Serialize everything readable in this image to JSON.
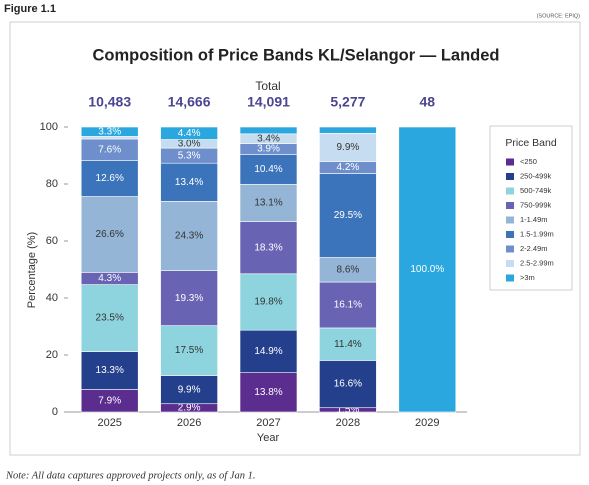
{
  "chart_data": {
    "type": "stacked_bar",
    "figure": "Figure 1.1",
    "source": "(SOURCE: EPIQ)",
    "title": "Composition of Price Bands KL/Selangor — Landed",
    "y_label": "Percentage (%)",
    "x_label": "Year",
    "legend_title": "Price Band",
    "note": "Note: All data captures approved projects only, as of Jan 1.",
    "categories": [
      "2025",
      "2026",
      "2027",
      "2028",
      "2029"
    ],
    "totals": {
      "label": "Total",
      "values": [
        10483,
        14666,
        14091,
        5277,
        48
      ],
      "value_labels": [
        "10,483",
        "14,666",
        "14,091",
        "5,277",
        "48"
      ]
    },
    "ylim": [
      0,
      100
    ],
    "yticks": [
      0,
      20,
      40,
      60,
      80,
      100
    ],
    "grid": false,
    "legend": "right",
    "series": [
      {
        "name": "<250",
        "color": "#5a2d8f",
        "values": [
          7.9,
          2.9,
          13.8,
          1.5,
          0
        ],
        "value_labels": [
          "7.9%",
          "2.9%",
          "13.8%",
          "1.5%",
          null
        ]
      },
      {
        "name": "250-499k",
        "color": "#24408d",
        "values": [
          13.3,
          9.9,
          14.9,
          16.6,
          0
        ],
        "value_labels": [
          "13.3%",
          "9.9%",
          "14.9%",
          "16.6%",
          null
        ]
      },
      {
        "name": "500-749k",
        "color": "#8ed4de",
        "values": [
          23.5,
          17.5,
          19.8,
          11.4,
          0
        ],
        "value_labels": [
          "23.5%",
          "17.5%",
          "19.8%",
          "11.4%",
          null
        ]
      },
      {
        "name": "750-999k",
        "color": "#6963b4",
        "values": [
          4.3,
          19.3,
          18.3,
          16.1,
          0
        ],
        "value_labels": [
          "4.3%",
          "19.3%",
          "18.3%",
          "16.1%",
          null
        ]
      },
      {
        "name": "1-1.49m",
        "color": "#94b5d6",
        "values": [
          26.6,
          24.3,
          13.1,
          8.6,
          0
        ],
        "value_labels": [
          "26.6%",
          "24.3%",
          "13.1%",
          "8.6%",
          null
        ]
      },
      {
        "name": "1.5-1.99m",
        "color": "#3b74ba",
        "values": [
          12.6,
          13.4,
          10.4,
          29.5,
          0
        ],
        "value_labels": [
          "12.6%",
          "13.4%",
          "10.4%",
          "29.5%",
          null
        ]
      },
      {
        "name": "2-2.49m",
        "color": "#6e8fcc",
        "values": [
          7.6,
          5.3,
          3.9,
          4.2,
          0
        ],
        "value_labels": [
          "7.6%",
          "5.3%",
          "3.9%",
          "4.2%",
          null
        ]
      },
      {
        "name": "2.5-2.99m",
        "color": "#c6ddf1",
        "values": [
          0.9,
          3.0,
          3.4,
          9.9,
          0
        ],
        "value_labels": [
          null,
          "3.0%",
          "3.4%",
          "9.9%",
          null
        ]
      },
      {
        "name": ">3m",
        "color": "#2aa7de",
        "values": [
          3.3,
          4.4,
          2.4,
          2.2,
          100
        ],
        "value_labels": [
          "3.3%",
          "4.4%",
          null,
          null,
          "100.0%"
        ]
      }
    ]
  }
}
